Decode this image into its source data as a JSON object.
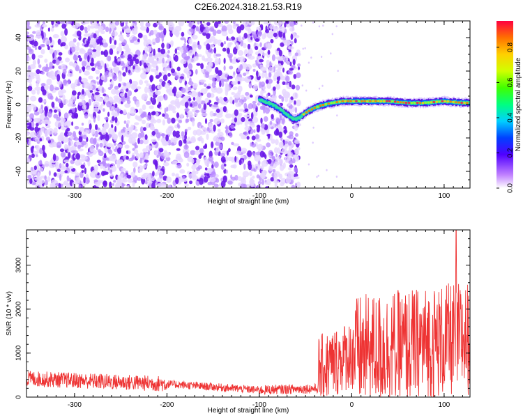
{
  "title": "C2E6.2024.318.21.53.R19",
  "colors": {
    "snr_line": "#ee3333",
    "spectrogram_purple": "#7a1fe8",
    "axis": "#000000"
  },
  "chart_data": [
    {
      "type": "heatmap",
      "xlabel": "Height of straight line (km)",
      "ylabel": "Frequency (Hz)",
      "xlim": [
        -352,
        128
      ],
      "ylim": [
        -50,
        50
      ],
      "xticks": [
        -300,
        -200,
        -100,
        0,
        100
      ],
      "yticks": [
        -40,
        -20,
        0,
        20,
        40
      ],
      "noise_cutoff_x": -57,
      "ridge": {
        "x": [
          -100,
          -90,
          -80,
          -70,
          -62,
          -57,
          -50,
          -40,
          -30,
          -20,
          -10,
          0,
          20,
          40,
          60,
          80,
          100,
          120,
          128
        ],
        "y": [
          3,
          1,
          -2,
          -6,
          -9,
          -8,
          -5,
          -2,
          0,
          1,
          2,
          2,
          2,
          2,
          1,
          1,
          2,
          1,
          1
        ]
      },
      "colorbar": {
        "label": "Normalized spectral amplitude",
        "range": [
          0.0,
          0.95
        ],
        "ticks": [
          0.0,
          0.2,
          0.4,
          0.6,
          0.8
        ],
        "tick_labels": [
          "0.0",
          "0.2",
          "0.4",
          "0.6",
          "0.8"
        ]
      }
    },
    {
      "type": "line",
      "xlabel": "Height of straight line (km)",
      "ylabel": "SNR (10 * v/v)",
      "xlim": [
        -352,
        128
      ],
      "ylim": [
        0,
        3800
      ],
      "xticks": [
        -300,
        -200,
        -100,
        0,
        100
      ],
      "yticks": [
        0,
        1000,
        2000,
        3000
      ],
      "series": [
        {
          "name": "SNR",
          "segments": [
            {
              "x_start": -352,
              "x_end": -200,
              "mean_start": 420,
              "mean_end": 300,
              "spread": 180
            },
            {
              "x_start": -200,
              "x_end": -100,
              "mean_start": 300,
              "mean_end": 160,
              "spread": 90
            },
            {
              "x_start": -100,
              "x_end": -36,
              "mean_start": 160,
              "mean_end": 200,
              "spread": 110
            },
            {
              "x_start": -36,
              "x_end": 0,
              "mean_start": 600,
              "mean_end": 1000,
              "spread": 800
            },
            {
              "x_start": 0,
              "x_end": 128,
              "mean_start": 1000,
              "mean_end": 1350,
              "spread": 1300
            }
          ],
          "peak": {
            "x": 113,
            "y": 3800
          }
        }
      ]
    }
  ]
}
